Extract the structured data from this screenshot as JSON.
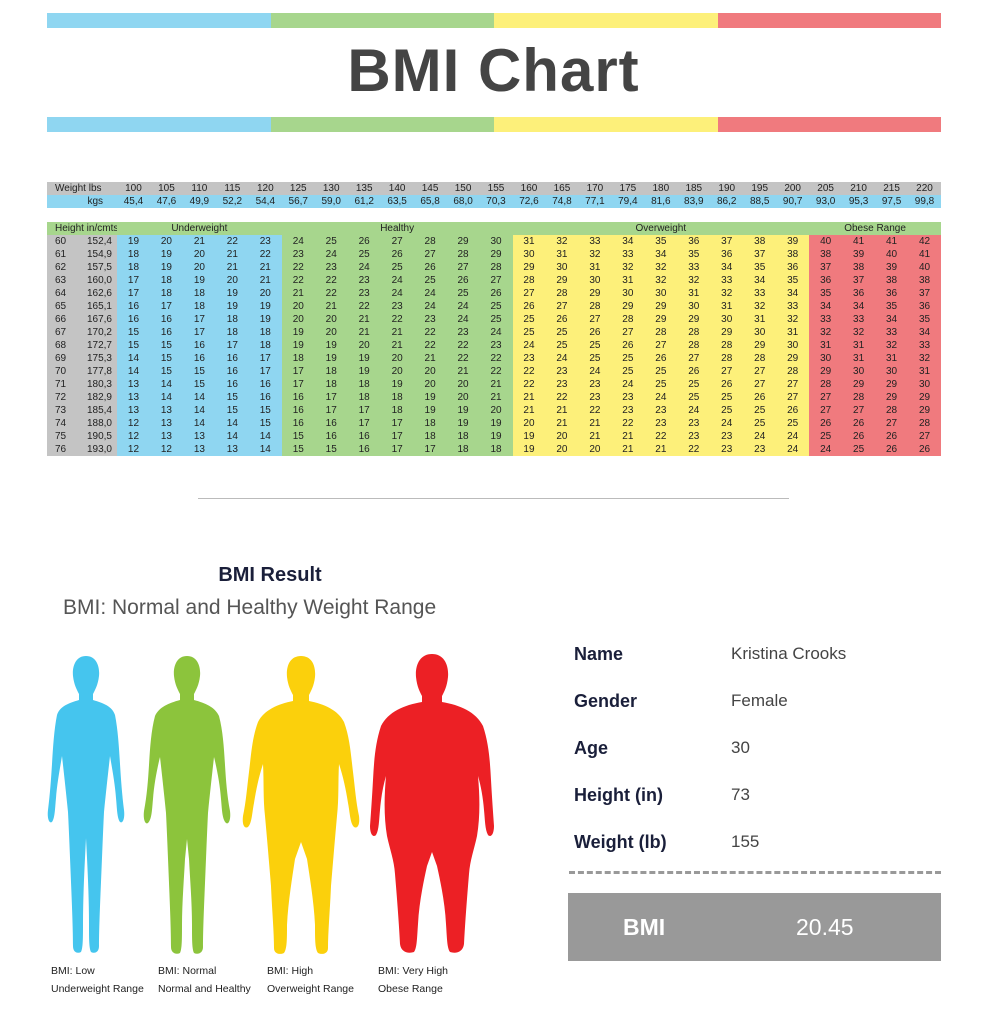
{
  "header": {
    "title": "BMI Chart",
    "band_colors": [
      "#8fd6f1",
      "#a7d68d",
      "#fdf07a",
      "#f07a7e"
    ]
  },
  "chart_data": {
    "type": "table",
    "row_header_label": "Weight lbs",
    "row_header_unit": "kgs",
    "weights_lbs": [
      "100",
      "105",
      "110",
      "115",
      "120",
      "125",
      "130",
      "135",
      "140",
      "145",
      "150",
      "155",
      "160",
      "165",
      "170",
      "175",
      "180",
      "185",
      "190",
      "195",
      "200",
      "205",
      "210",
      "215",
      "220"
    ],
    "weights_kgs": [
      "45,4",
      "47,6",
      "49,9",
      "52,2",
      "54,4",
      "56,7",
      "59,0",
      "61,2",
      "63,5",
      "65,8",
      "68,0",
      "70,3",
      "72,6",
      "74,8",
      "77,1",
      "79,4",
      "81,6",
      "83,9",
      "86,2",
      "88,5",
      "90,7",
      "93,0",
      "95,3",
      "97,5",
      "99,8"
    ],
    "height_header": "Height in/cmts",
    "categories": [
      {
        "label": "Underweight",
        "color": "#8fd6f1",
        "columns": 5
      },
      {
        "label": "Healthy",
        "color": "#a7d68d",
        "columns": 7
      },
      {
        "label": "Overweight",
        "color": "#fdf07a",
        "columns": 9
      },
      {
        "label": "Obese Range",
        "color": "#f07a7e",
        "columns": 4
      }
    ],
    "rows": [
      {
        "in": "60",
        "cm": "152,4",
        "values": [
          "19",
          "20",
          "21",
          "22",
          "23",
          "24",
          "25",
          "26",
          "27",
          "28",
          "29",
          "30",
          "31",
          "32",
          "33",
          "34",
          "35",
          "36",
          "37",
          "38",
          "39",
          "40",
          "41",
          "41",
          "42"
        ]
      },
      {
        "in": "61",
        "cm": "154,9",
        "values": [
          "18",
          "19",
          "20",
          "21",
          "22",
          "23",
          "24",
          "25",
          "26",
          "27",
          "28",
          "29",
          "30",
          "31",
          "32",
          "33",
          "34",
          "35",
          "36",
          "37",
          "38",
          "38",
          "39",
          "40",
          "41"
        ]
      },
      {
        "in": "62",
        "cm": "157,5",
        "values": [
          "18",
          "19",
          "20",
          "21",
          "21",
          "22",
          "23",
          "24",
          "25",
          "26",
          "27",
          "28",
          "29",
          "30",
          "31",
          "32",
          "32",
          "33",
          "34",
          "35",
          "36",
          "37",
          "38",
          "39",
          "40"
        ]
      },
      {
        "in": "63",
        "cm": "160,0",
        "values": [
          "17",
          "18",
          "19",
          "20",
          "21",
          "22",
          "22",
          "23",
          "24",
          "25",
          "26",
          "27",
          "28",
          "29",
          "30",
          "31",
          "32",
          "32",
          "33",
          "34",
          "35",
          "36",
          "37",
          "38",
          "38"
        ]
      },
      {
        "in": "64",
        "cm": "162,6",
        "values": [
          "17",
          "18",
          "18",
          "19",
          "20",
          "21",
          "22",
          "23",
          "24",
          "24",
          "25",
          "26",
          "27",
          "28",
          "29",
          "30",
          "30",
          "31",
          "32",
          "33",
          "34",
          "35",
          "36",
          "36",
          "37"
        ]
      },
      {
        "in": "65",
        "cm": "165,1",
        "values": [
          "16",
          "17",
          "18",
          "19",
          "19",
          "20",
          "21",
          "22",
          "23",
          "24",
          "24",
          "25",
          "26",
          "27",
          "28",
          "29",
          "29",
          "30",
          "31",
          "32",
          "33",
          "34",
          "34",
          "35",
          "36"
        ]
      },
      {
        "in": "66",
        "cm": "167,6",
        "values": [
          "16",
          "16",
          "17",
          "18",
          "19",
          "20",
          "20",
          "21",
          "22",
          "23",
          "24",
          "25",
          "25",
          "26",
          "27",
          "28",
          "29",
          "29",
          "30",
          "31",
          "32",
          "33",
          "33",
          "34",
          "35"
        ]
      },
      {
        "in": "67",
        "cm": "170,2",
        "values": [
          "15",
          "16",
          "17",
          "18",
          "18",
          "19",
          "20",
          "21",
          "21",
          "22",
          "23",
          "24",
          "25",
          "25",
          "26",
          "27",
          "28",
          "28",
          "29",
          "30",
          "31",
          "32",
          "32",
          "33",
          "34"
        ]
      },
      {
        "in": "68",
        "cm": "172,7",
        "values": [
          "15",
          "15",
          "16",
          "17",
          "18",
          "19",
          "19",
          "20",
          "21",
          "22",
          "22",
          "23",
          "24",
          "25",
          "25",
          "26",
          "27",
          "28",
          "28",
          "29",
          "30",
          "31",
          "31",
          "32",
          "33"
        ]
      },
      {
        "in": "69",
        "cm": "175,3",
        "values": [
          "14",
          "15",
          "16",
          "16",
          "17",
          "18",
          "19",
          "19",
          "20",
          "21",
          "22",
          "22",
          "23",
          "24",
          "25",
          "25",
          "26",
          "27",
          "28",
          "28",
          "29",
          "30",
          "31",
          "31",
          "32"
        ]
      },
      {
        "in": "70",
        "cm": "177,8",
        "values": [
          "14",
          "15",
          "15",
          "16",
          "17",
          "17",
          "18",
          "19",
          "20",
          "20",
          "21",
          "22",
          "22",
          "23",
          "24",
          "25",
          "25",
          "26",
          "27",
          "27",
          "28",
          "29",
          "30",
          "30",
          "31"
        ]
      },
      {
        "in": "71",
        "cm": "180,3",
        "values": [
          "13",
          "14",
          "15",
          "16",
          "16",
          "17",
          "18",
          "18",
          "19",
          "20",
          "20",
          "21",
          "22",
          "23",
          "23",
          "24",
          "25",
          "25",
          "26",
          "27",
          "27",
          "28",
          "29",
          "29",
          "30"
        ]
      },
      {
        "in": "72",
        "cm": "182,9",
        "values": [
          "13",
          "14",
          "14",
          "15",
          "16",
          "16",
          "17",
          "18",
          "18",
          "19",
          "20",
          "21",
          "21",
          "22",
          "23",
          "23",
          "24",
          "25",
          "25",
          "26",
          "27",
          "27",
          "28",
          "29",
          "29"
        ]
      },
      {
        "in": "73",
        "cm": "185,4",
        "values": [
          "13",
          "13",
          "14",
          "15",
          "15",
          "16",
          "17",
          "17",
          "18",
          "19",
          "19",
          "20",
          "21",
          "21",
          "22",
          "23",
          "23",
          "24",
          "25",
          "25",
          "26",
          "27",
          "27",
          "28",
          "29"
        ]
      },
      {
        "in": "74",
        "cm": "188,0",
        "values": [
          "12",
          "13",
          "14",
          "14",
          "15",
          "16",
          "16",
          "17",
          "17",
          "18",
          "19",
          "19",
          "20",
          "21",
          "21",
          "22",
          "23",
          "23",
          "24",
          "25",
          "25",
          "26",
          "26",
          "27",
          "28"
        ]
      },
      {
        "in": "75",
        "cm": "190,5",
        "values": [
          "12",
          "13",
          "13",
          "14",
          "14",
          "15",
          "16",
          "16",
          "17",
          "18",
          "18",
          "19",
          "19",
          "20",
          "21",
          "21",
          "22",
          "23",
          "23",
          "24",
          "24",
          "25",
          "26",
          "26",
          "27"
        ]
      },
      {
        "in": "76",
        "cm": "193,0",
        "values": [
          "12",
          "12",
          "13",
          "13",
          "14",
          "15",
          "15",
          "16",
          "17",
          "17",
          "18",
          "18",
          "19",
          "20",
          "20",
          "21",
          "21",
          "22",
          "23",
          "23",
          "24",
          "24",
          "25",
          "26",
          "26"
        ]
      }
    ]
  },
  "result": {
    "title": "BMI Result",
    "subtitle": "BMI: Normal and Healthy Weight Range",
    "figures": [
      {
        "color": "#45c5ee",
        "icon": "underweight-figure-icon",
        "line1": "BMI: Low",
        "line2": "Underweight Range"
      },
      {
        "color": "#8cc43c",
        "icon": "normal-figure-icon",
        "line1": "BMI: Normal",
        "line2": "Normal and Healthy"
      },
      {
        "color": "#fbd00c",
        "icon": "overweight-figure-icon",
        "line1": "BMI: High",
        "line2": "Overweight Range"
      },
      {
        "color": "#ec2025",
        "icon": "obese-figure-icon",
        "line1": "BMI: Very High",
        "line2": "Obese Range"
      }
    ],
    "info": {
      "name_label": "Name",
      "name_value": "Kristina Crooks",
      "gender_label": "Gender",
      "gender_value": "Female",
      "age_label": "Age",
      "age_value": "30",
      "height_label": "Height (in)",
      "height_value": "73",
      "weight_label": "Weight (lb)",
      "weight_value": "155"
    },
    "bmi_label": "BMI",
    "bmi_value": "20.45"
  }
}
